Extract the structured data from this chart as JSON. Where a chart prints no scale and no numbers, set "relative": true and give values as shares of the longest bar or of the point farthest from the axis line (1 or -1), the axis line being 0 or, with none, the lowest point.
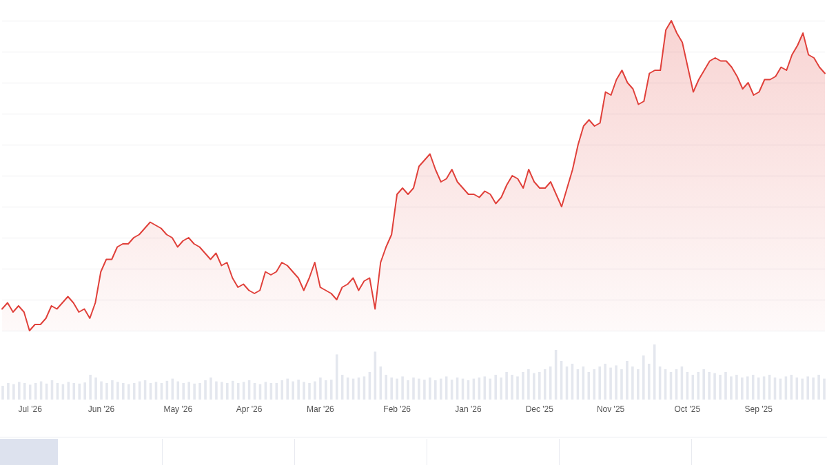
{
  "chart_data": [
    {
      "type": "area",
      "relative": true,
      "grid": "y",
      "color": "#e0403a",
      "categories": [
        null,
        null,
        null,
        null,
        null,
        null,
        null,
        null,
        null,
        null,
        null,
        null,
        null,
        null,
        null,
        null,
        null,
        null,
        null,
        null,
        null,
        null,
        null,
        null,
        null,
        null,
        null,
        null,
        null,
        null,
        null,
        null,
        null,
        null,
        null,
        null,
        null,
        null,
        null,
        null,
        null,
        null,
        null,
        null,
        null,
        null,
        null,
        null,
        null,
        null,
        null,
        null,
        null,
        null,
        null,
        null,
        null,
        null,
        null,
        null,
        null,
        null,
        null,
        null,
        null,
        null,
        null,
        null,
        null,
        null,
        null,
        null,
        null,
        null,
        null,
        null,
        null,
        null,
        null,
        null,
        null,
        null,
        null,
        null,
        null,
        null,
        null,
        null,
        null,
        null,
        null,
        null,
        null,
        null,
        null,
        null,
        null,
        null,
        null,
        null,
        null,
        null,
        null,
        null,
        null,
        null,
        null,
        null,
        null,
        null,
        null,
        null,
        null,
        null,
        null,
        null,
        null,
        null,
        null,
        null,
        null,
        null,
        null,
        null,
        null,
        null,
        null,
        null,
        null,
        null,
        null,
        null,
        null,
        null,
        null,
        null,
        null,
        null,
        null,
        null,
        null,
        null,
        null,
        null,
        null,
        null,
        null,
        null,
        null,
        null,
        null
      ],
      "values": [
        0.07,
        0.09,
        0.06,
        0.08,
        0.06,
        0,
        0.02,
        0.02,
        0.04,
        0.08,
        0.07,
        0.09,
        0.11,
        0.09,
        0.06,
        0.07,
        0.04,
        0.09,
        0.19,
        0.23,
        0.23,
        0.27,
        0.28,
        0.28,
        0.3,
        0.31,
        0.33,
        0.35,
        0.34,
        0.33,
        0.31,
        0.3,
        0.27,
        0.29,
        0.3,
        0.28,
        0.27,
        0.25,
        0.23,
        0.25,
        0.21,
        0.22,
        0.17,
        0.14,
        0.15,
        0.13,
        0.12,
        0.13,
        0.19,
        0.18,
        0.19,
        0.22,
        0.21,
        0.19,
        0.17,
        0.13,
        0.17,
        0.22,
        0.14,
        0.13,
        0.12,
        0.1,
        0.14,
        0.15,
        0.17,
        0.13,
        0.16,
        0.17,
        0.07,
        0.22,
        0.27,
        0.31,
        0.44,
        0.46,
        0.44,
        0.46,
        0.53,
        0.55,
        0.57,
        0.52,
        0.48,
        0.49,
        0.52,
        0.48,
        0.46,
        0.44,
        0.44,
        0.43,
        0.45,
        0.44,
        0.41,
        0.43,
        0.47,
        0.5,
        0.49,
        0.46,
        0.52,
        0.48,
        0.46,
        0.46,
        0.48,
        0.44,
        0.4,
        0.46,
        0.52,
        0.6,
        0.66,
        0.68,
        0.66,
        0.67,
        0.77,
        0.76,
        0.81,
        0.84,
        0.8,
        0.78,
        0.73,
        0.74,
        0.83,
        0.84,
        0.84,
        0.97,
        1,
        0.96,
        0.93,
        0.85,
        0.77,
        0.81,
        0.84,
        0.87,
        0.88,
        0.87,
        0.87,
        0.85,
        0.82,
        0.78,
        0.8,
        0.76,
        0.77,
        0.81,
        0.81,
        0.82,
        0.85,
        0.84,
        0.89,
        0.92,
        0.96,
        0.89,
        0.88,
        0.85,
        0.83
      ]
    },
    {
      "type": "bar",
      "relative": true,
      "grid": false,
      "color": "#e4e7ee",
      "categories": [
        null,
        null,
        null,
        null,
        null,
        "Jul '26",
        null,
        null,
        null,
        null,
        null,
        null,
        null,
        null,
        null,
        null,
        null,
        null,
        "Jun '26",
        null,
        null,
        null,
        null,
        null,
        null,
        null,
        null,
        null,
        null,
        null,
        null,
        null,
        "May '26",
        null,
        null,
        null,
        null,
        null,
        null,
        null,
        null,
        null,
        null,
        null,
        null,
        "Apr '26",
        null,
        null,
        null,
        null,
        null,
        null,
        null,
        null,
        null,
        null,
        null,
        null,
        "Mar '26",
        null,
        null,
        null,
        null,
        null,
        null,
        null,
        null,
        null,
        null,
        null,
        null,
        null,
        "Feb '26",
        null,
        null,
        null,
        null,
        null,
        null,
        null,
        null,
        null,
        null,
        null,
        null,
        "Jan '26",
        null,
        null,
        null,
        null,
        null,
        null,
        null,
        null,
        null,
        null,
        null,
        null,
        "Dec '25",
        null,
        null,
        null,
        null,
        null,
        null,
        null,
        null,
        null,
        null,
        null,
        null,
        "Nov '25",
        null,
        null,
        null,
        null,
        null,
        null,
        null,
        null,
        null,
        null,
        null,
        null,
        null,
        "Oct '25",
        null,
        null,
        null,
        null,
        null,
        null,
        null,
        null,
        null,
        null,
        null,
        null,
        "Sep '25",
        null,
        null,
        null,
        null,
        null,
        null,
        null,
        null,
        null,
        null,
        null,
        null
      ],
      "values": [
        0.25,
        0.3,
        0.28,
        0.32,
        0.3,
        0.27,
        0.3,
        0.33,
        0.29,
        0.35,
        0.3,
        0.28,
        0.32,
        0.3,
        0.29,
        0.31,
        0.45,
        0.4,
        0.33,
        0.3,
        0.35,
        0.32,
        0.3,
        0.28,
        0.3,
        0.33,
        0.35,
        0.3,
        0.32,
        0.3,
        0.34,
        0.38,
        0.33,
        0.3,
        0.32,
        0.29,
        0.3,
        0.35,
        0.4,
        0.33,
        0.32,
        0.3,
        0.34,
        0.3,
        0.32,
        0.35,
        0.3,
        0.28,
        0.32,
        0.3,
        0.3,
        0.35,
        0.38,
        0.33,
        0.36,
        0.32,
        0.3,
        0.33,
        0.4,
        0.35,
        0.36,
        0.82,
        0.45,
        0.4,
        0.38,
        0.4,
        0.42,
        0.5,
        0.87,
        0.6,
        0.45,
        0.4,
        0.38,
        0.42,
        0.35,
        0.4,
        0.38,
        0.36,
        0.4,
        0.35,
        0.38,
        0.42,
        0.36,
        0.4,
        0.38,
        0.35,
        0.38,
        0.4,
        0.42,
        0.38,
        0.45,
        0.4,
        0.5,
        0.45,
        0.42,
        0.5,
        0.55,
        0.48,
        0.5,
        0.55,
        0.6,
        0.9,
        0.7,
        0.6,
        0.65,
        0.55,
        0.6,
        0.5,
        0.55,
        0.6,
        0.65,
        0.58,
        0.62,
        0.55,
        0.7,
        0.6,
        0.55,
        0.8,
        0.65,
        1,
        0.6,
        0.55,
        0.5,
        0.55,
        0.6,
        0.5,
        0.45,
        0.5,
        0.55,
        0.5,
        0.48,
        0.45,
        0.5,
        0.42,
        0.45,
        0.4,
        0.42,
        0.45,
        0.4,
        0.42,
        0.45,
        0.4,
        0.38,
        0.42,
        0.45,
        0.4,
        0.38,
        0.42,
        0.4,
        0.45,
        0.38
      ]
    }
  ]
}
